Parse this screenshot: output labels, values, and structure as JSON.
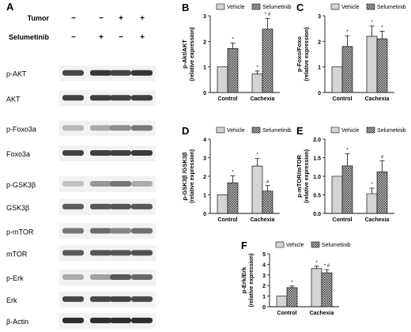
{
  "colors": {
    "vehicle_fill": "#ffffff",
    "selumetinib_fill": "#d4d4d4",
    "band": "#1a1a1a",
    "lane_bg": "#ffffff",
    "ink": "#111111"
  },
  "blot": {
    "panel_label": "A",
    "conditions": [
      {
        "label": "Tumor",
        "signs": [
          "−",
          "−",
          "+",
          "+"
        ]
      },
      {
        "label": "Selumetinib",
        "signs": [
          "−",
          "+",
          "−",
          "+"
        ]
      }
    ],
    "rows": [
      {
        "label": "p-AKT",
        "intensity": [
          0.78,
          0.86,
          0.8,
          0.86
        ]
      },
      {
        "label": "AKT",
        "intensity": [
          0.8,
          0.82,
          0.8,
          0.82
        ]
      },
      {
        "label": "p-Foxo3a",
        "intensity": [
          0.25,
          0.32,
          0.45,
          0.55
        ]
      },
      {
        "label": "Foxo3a",
        "intensity": [
          0.8,
          0.82,
          0.82,
          0.85
        ]
      },
      {
        "label": "p-GSK3β",
        "intensity": [
          0.2,
          0.4,
          0.55,
          0.3
        ]
      },
      {
        "label": "GSK3β",
        "intensity": [
          0.68,
          0.7,
          0.72,
          0.7
        ]
      },
      {
        "label": "p-mTOR",
        "intensity": [
          0.55,
          0.6,
          0.48,
          0.58
        ]
      },
      {
        "label": "mTOR",
        "intensity": [
          0.7,
          0.72,
          0.72,
          0.74
        ]
      },
      {
        "label": "p-Erk",
        "intensity": [
          0.3,
          0.35,
          0.7,
          0.62
        ]
      },
      {
        "label": "Erk",
        "intensity": [
          0.78,
          0.78,
          0.8,
          0.76
        ]
      },
      {
        "label": "β-Actin",
        "intensity": [
          0.9,
          0.9,
          0.9,
          0.9
        ]
      }
    ]
  },
  "chart_data": [
    {
      "panel": "B",
      "type": "bar",
      "categories": [
        "Control",
        "Cachexia"
      ],
      "ylabel": "p-Akt/AKT",
      "ylabel2": "(relative expression)",
      "ylim": [
        0,
        3
      ],
      "yticks": [
        0,
        1,
        2,
        3
      ],
      "legend": [
        "Vehicle",
        "Selumetinib"
      ],
      "series": [
        {
          "name": "Vehicle",
          "values": [
            1.0,
            0.72
          ],
          "errors": [
            0,
            0.12
          ]
        },
        {
          "name": "Selumetinib",
          "values": [
            1.72,
            2.48
          ],
          "errors": [
            0.22,
            0.42
          ]
        }
      ],
      "annotations": [
        [
          "",
          "*"
        ],
        [
          "*",
          "* #"
        ]
      ]
    },
    {
      "panel": "C",
      "type": "bar",
      "categories": [
        "Control",
        "Cachexia"
      ],
      "ylabel": "p-Foxo/Foxo",
      "ylabel2": "(relative expression)",
      "ylim": [
        0,
        3
      ],
      "yticks": [
        0,
        1,
        2,
        3
      ],
      "legend": [
        "Vehicle",
        "Selumetinib"
      ],
      "series": [
        {
          "name": "Vehicle",
          "values": [
            1.0,
            2.2
          ],
          "errors": [
            0,
            0.4
          ]
        },
        {
          "name": "Selumetinib",
          "values": [
            1.8,
            2.1
          ],
          "errors": [
            0.42,
            0.3
          ]
        }
      ],
      "annotations": [
        [
          "",
          "*"
        ],
        [
          "*",
          "*"
        ]
      ]
    },
    {
      "panel": "D",
      "type": "bar",
      "categories": [
        "Control",
        "Cachexia"
      ],
      "ylabel": "p-GSK3β /GSK3β",
      "ylabel2": "(relative expression)",
      "ylim": [
        0,
        4
      ],
      "yticks": [
        0,
        1,
        2,
        3,
        4
      ],
      "legend": [
        "Vehicle",
        "Selumetinib"
      ],
      "series": [
        {
          "name": "Vehicle",
          "values": [
            1.0,
            2.55
          ],
          "errors": [
            0,
            0.4
          ]
        },
        {
          "name": "Selumetinib",
          "values": [
            1.65,
            1.2
          ],
          "errors": [
            0.38,
            0.3
          ]
        }
      ],
      "annotations": [
        [
          "",
          "*"
        ],
        [
          "*",
          "#"
        ]
      ]
    },
    {
      "panel": "E",
      "type": "bar",
      "categories": [
        "Control",
        "Cachexia"
      ],
      "ylabel": "p-mTOR/mTOR",
      "ylabel2": "(relative expression)",
      "ylim": [
        0,
        2
      ],
      "yticks": [
        0.0,
        0.5,
        1.0,
        1.5,
        2.0
      ],
      "legend": [
        "Vehicle",
        "Selumetinib"
      ],
      "series": [
        {
          "name": "Vehicle",
          "values": [
            1.0,
            0.53
          ],
          "errors": [
            0,
            0.15
          ]
        },
        {
          "name": "Selumetinib",
          "values": [
            1.28,
            1.12
          ],
          "errors": [
            0.33,
            0.3
          ]
        }
      ],
      "annotations": [
        [
          "",
          "*"
        ],
        [
          "*",
          "#"
        ]
      ]
    },
    {
      "panel": "F",
      "type": "bar",
      "categories": [
        "Control",
        "Cachexia"
      ],
      "ylabel": "p-Erk/Erk",
      "ylabel2": "(relative expression)",
      "ylim": [
        0,
        5
      ],
      "yticks": [
        0,
        1,
        2,
        3,
        4,
        5
      ],
      "legend": [
        "Vehicle",
        "Selumetinib"
      ],
      "series": [
        {
          "name": "Vehicle",
          "values": [
            1.0,
            3.6
          ],
          "errors": [
            0,
            0.22
          ]
        },
        {
          "name": "Selumetinib",
          "values": [
            1.8,
            3.2
          ],
          "errors": [
            0.15,
            0.3
          ]
        }
      ],
      "annotations": [
        [
          "",
          "*"
        ],
        [
          "*",
          "* #"
        ]
      ]
    }
  ]
}
